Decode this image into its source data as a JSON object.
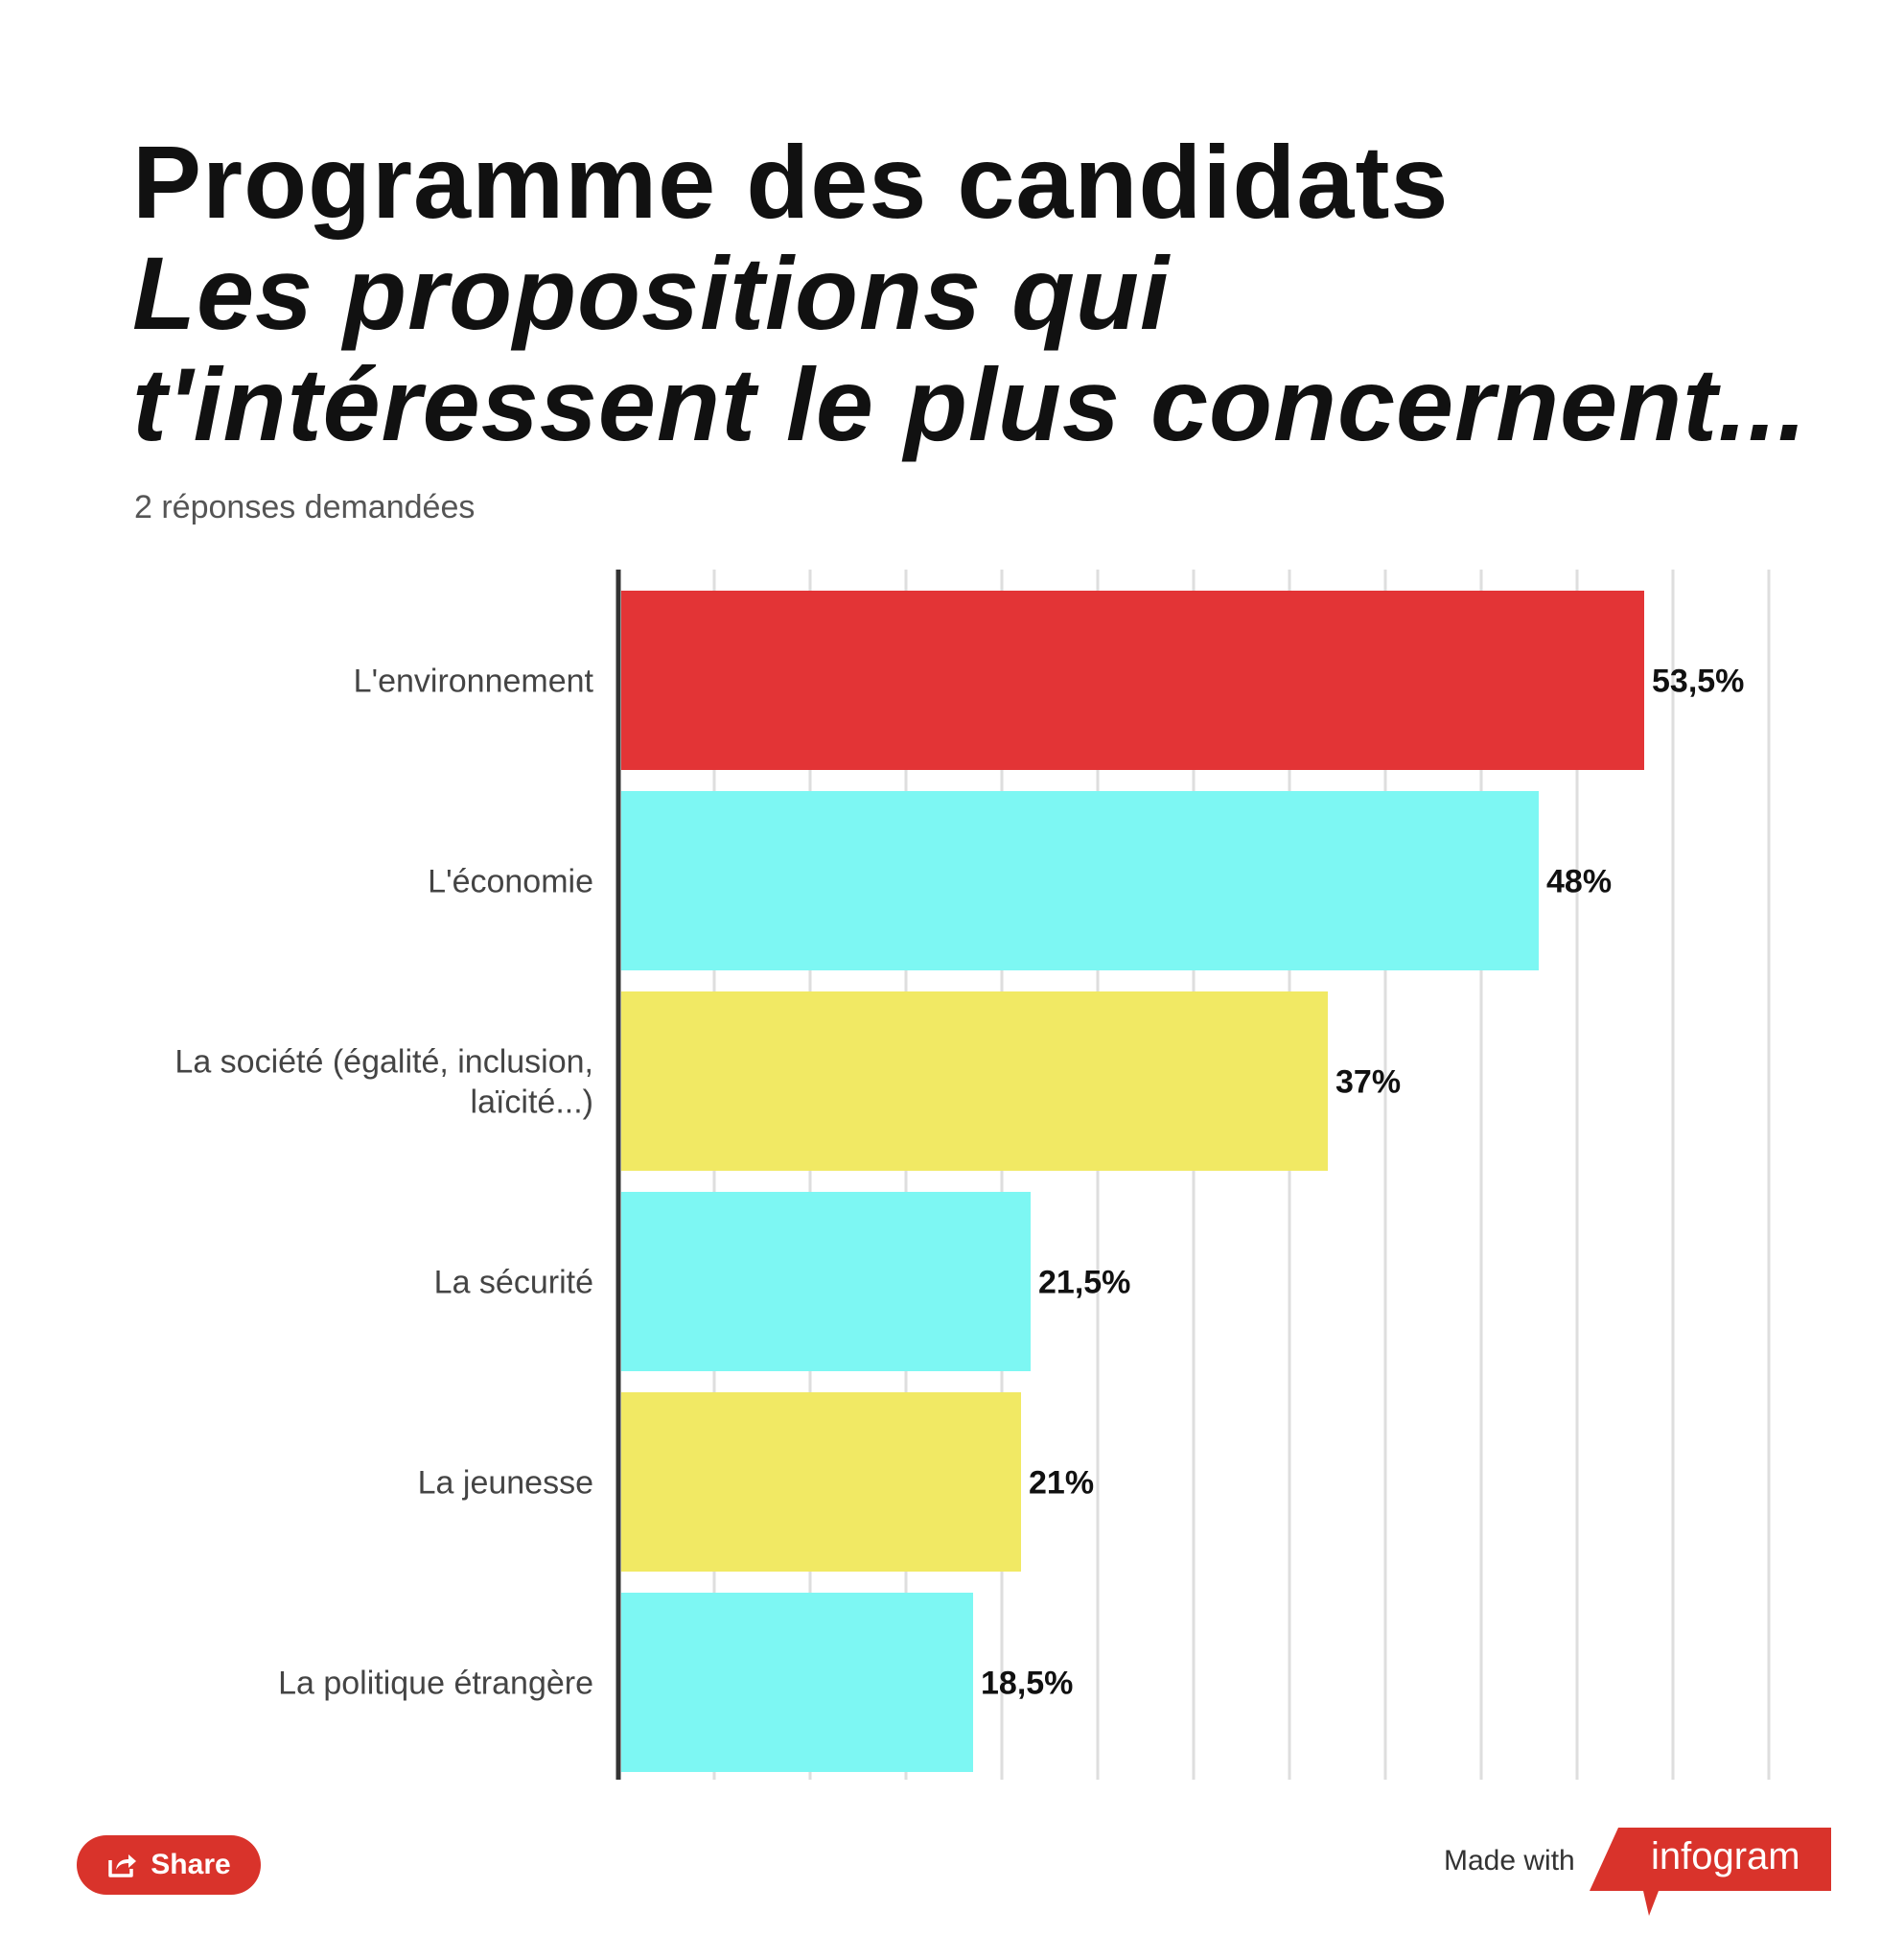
{
  "title": {
    "line1": "Programme des candidats",
    "line2": "Les propositions qui t'intéressent le plus concernent..."
  },
  "subtitle": "2 réponses demandées",
  "chart_data": {
    "type": "bar",
    "orientation": "horizontal",
    "categories": [
      [
        "L'environnement"
      ],
      [
        "L'économie"
      ],
      [
        "La société (égalité, inclusion,",
        "laïcité...)"
      ],
      [
        "La sécurité"
      ],
      [
        "La jeunesse"
      ],
      [
        "La politique étrangère"
      ]
    ],
    "values": [
      53.5,
      48,
      37,
      21.5,
      21,
      18.5
    ],
    "value_labels": [
      "53,5%",
      "48%",
      "37%",
      "21,5%",
      "21%",
      "18,5%"
    ],
    "colors": [
      "#e33436",
      "#7df7f3",
      "#f1e964",
      "#7df7f3",
      "#f1e964",
      "#7df7f3"
    ],
    "xlim": [
      0,
      60
    ],
    "grid": true,
    "gridline_step": 5
  },
  "footer": {
    "share_label": "Share",
    "share_icon": "share-icon",
    "made_with": "Made with",
    "brand": "infogram",
    "brand_color": "#d9332b"
  }
}
